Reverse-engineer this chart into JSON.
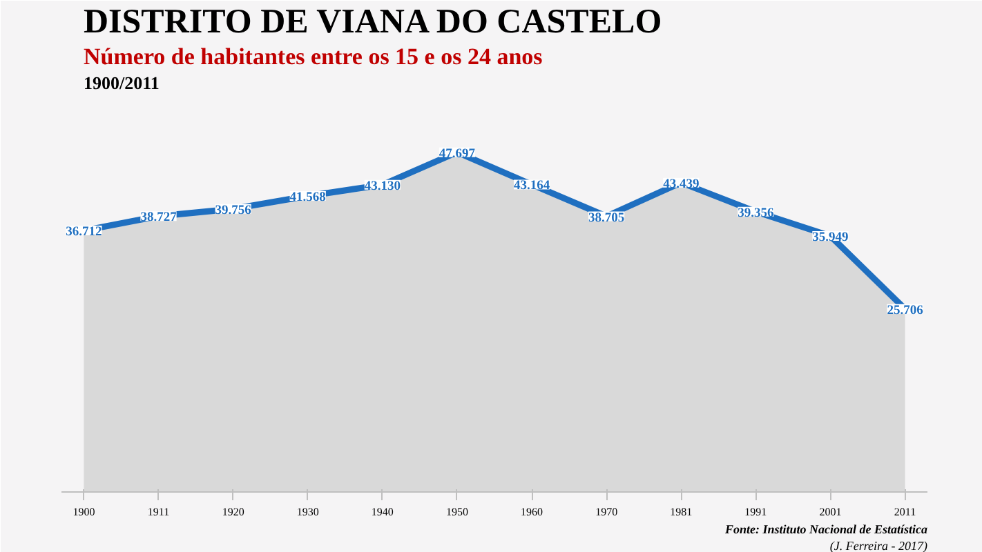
{
  "chart_data": {
    "type": "area",
    "title": "DISTRITO DE VIANA DO CASTELO",
    "subtitle": "Número de habitantes entre os 15 e os 24 anos",
    "categories": [
      "1900",
      "1911",
      "1920",
      "1930",
      "1940",
      "1950",
      "1960",
      "1970",
      "1981",
      "1991",
      "2001",
      "2011"
    ],
    "series": [
      {
        "color": "#1f6fc0",
        "values": [
          36712,
          38727,
          39756,
          41568,
          43130,
          47697,
          43164,
          38705,
          43439,
          39356,
          35949,
          25706
        ],
        "value_labels": [
          "36.712",
          "38.727",
          "39.756",
          "41.568",
          "43.130",
          "47.697",
          "43.164",
          "38.705",
          "43.439",
          "39.356",
          "35.949",
          "25.706"
        ]
      }
    ],
    "ylim": [
      0,
      56000
    ],
    "grid": false,
    "tick_labels": "x",
    "annotations": [
      "1900/2011",
      "Fonte: Instituto Nacional de Estatística",
      "(J. Ferreira - 2017)"
    ]
  }
}
